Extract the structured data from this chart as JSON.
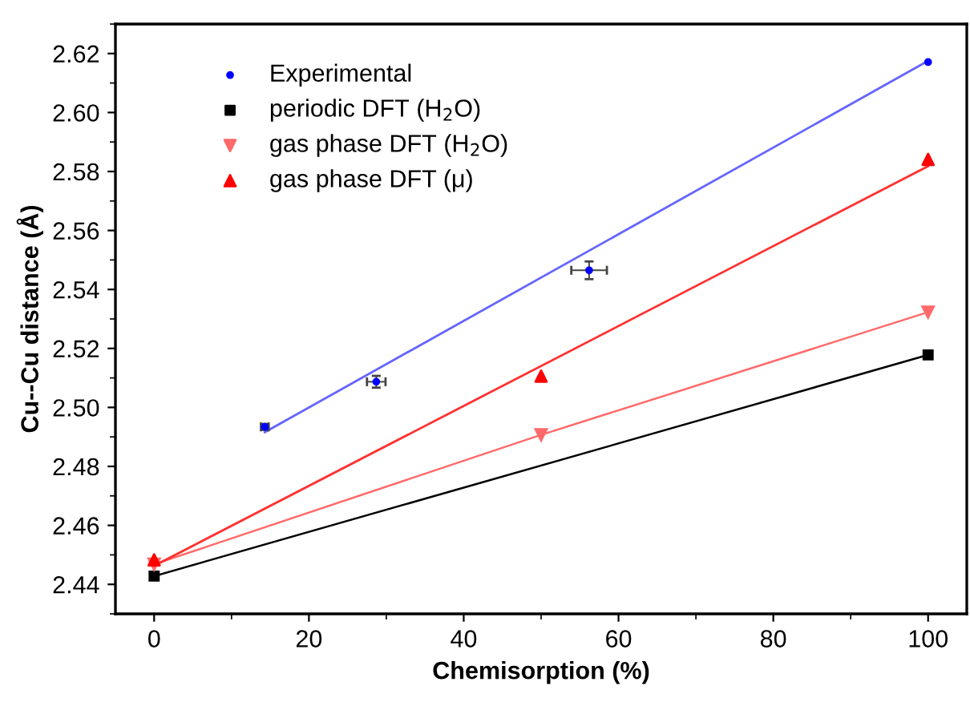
{
  "chart_data": {
    "type": "scatter",
    "xlabel": "Chemisorption (%)",
    "ylabel": "Cu--Cu distance (Å)",
    "xlim": [
      -5,
      105
    ],
    "ylim": [
      2.43,
      2.63
    ],
    "xticks": [
      0,
      20,
      40,
      60,
      80,
      100
    ],
    "yticks": [
      2.44,
      2.46,
      2.48,
      {
        "value": 2.5,
        "label": "2.50"
      },
      2.52,
      2.54,
      2.56,
      2.58,
      {
        "value": 2.6,
        "label": "2.60"
      },
      2.62
    ],
    "grid": false,
    "legend": "top left",
    "series": [
      {
        "name": "Experimental",
        "marker": "circle",
        "color": "#0000ff",
        "x": [
          14.3,
          28.7,
          56.2,
          100
        ],
        "values": [
          2.4934,
          2.5087,
          2.5465,
          2.6171
        ],
        "errors": [
          0.001,
          0.002,
          0.003,
          null
        ],
        "xerrors": [
          0.5,
          1.2,
          2.3,
          null
        ]
      },
      {
        "name": "periodic DFT (H$_{2}$O)",
        "type": "line",
        "marker": "square",
        "color": "#000000",
        "x": [
          0,
          100
        ],
        "values": [
          2.4428,
          2.5178
        ]
      },
      {
        "name": "gas phase DFT (H$_{2}$O)",
        "type": "line",
        "marker": "triangle_down",
        "color": "#ff6a6a",
        "x": [
          0,
          50,
          100
        ],
        "values": [
          2.4468,
          2.4907,
          2.5323
        ]
      },
      {
        "name": "gas phase DFT (μ)",
        "marker": "triangle",
        "color": "#ff0000",
        "x": [
          0,
          50,
          100
        ],
        "values": [
          2.4483,
          2.5106,
          2.5841
        ]
      },
      {
        "type": "line",
        "marker": "none",
        "color": "#6464ff",
        "x": [
          14.3,
          100
        ],
        "values": [
          2.4916,
          2.6175
        ]
      },
      {
        "type": "line",
        "marker": "none",
        "color": "#ff3030",
        "x": [
          0,
          100
        ],
        "values": [
          2.4463,
          2.5818
        ]
      }
    ]
  }
}
